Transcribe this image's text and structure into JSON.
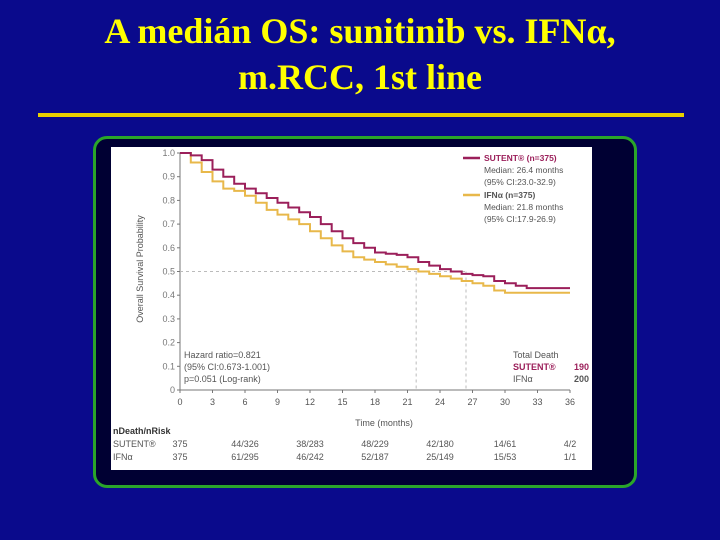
{
  "slide": {
    "title_line1": "A medián OS: sunitinib vs. IFNα,",
    "title_line2": "m.RCC, 1st line"
  },
  "colors": {
    "background": "#0a0a8c",
    "title": "#ffff00",
    "rule": "#e8d000",
    "frame": "#2aa52a",
    "sutent": "#9b1f5a",
    "ifn": "#e8b84a"
  },
  "chart_data": {
    "type": "line",
    "xlabel": "Time (months)",
    "ylabel": "Overall Survival Probability",
    "xlim": [
      0,
      36
    ],
    "ylim": [
      0,
      1.0
    ],
    "x_ticks": [
      "0",
      "3",
      "6",
      "9",
      "12",
      "15",
      "18",
      "21",
      "24",
      "27",
      "30",
      "33",
      "36"
    ],
    "y_ticks": [
      "0",
      "0.1",
      "0.2",
      "0.3",
      "0.4",
      "0.5",
      "0.6",
      "0.7",
      "0.8",
      "0.9",
      "1.0"
    ],
    "series": [
      {
        "name": "SUTENT® (n=375)",
        "x": [
          0,
          1,
          2,
          3,
          4,
          5,
          6,
          7,
          8,
          9,
          10,
          11,
          12,
          13,
          14,
          15,
          16,
          17,
          18,
          19,
          20,
          21,
          22,
          23,
          24,
          25,
          26,
          27,
          28,
          29,
          30,
          31,
          32,
          33,
          34,
          35,
          36
        ],
        "y": [
          1.0,
          0.99,
          0.97,
          0.93,
          0.9,
          0.87,
          0.85,
          0.83,
          0.81,
          0.79,
          0.77,
          0.75,
          0.73,
          0.7,
          0.67,
          0.64,
          0.62,
          0.6,
          0.58,
          0.575,
          0.57,
          0.56,
          0.54,
          0.525,
          0.51,
          0.5,
          0.49,
          0.485,
          0.48,
          0.46,
          0.45,
          0.44,
          0.43,
          0.43,
          0.43,
          0.43,
          0.43
        ]
      },
      {
        "name": "IFNα (n=375)",
        "x": [
          0,
          1,
          2,
          3,
          4,
          5,
          6,
          7,
          8,
          9,
          10,
          11,
          12,
          13,
          14,
          15,
          16,
          17,
          18,
          19,
          20,
          21,
          22,
          23,
          24,
          25,
          26,
          27,
          28,
          29,
          30,
          31,
          32,
          33,
          34,
          35,
          36
        ],
        "y": [
          1.0,
          0.96,
          0.92,
          0.88,
          0.85,
          0.84,
          0.82,
          0.79,
          0.76,
          0.74,
          0.72,
          0.7,
          0.67,
          0.64,
          0.61,
          0.585,
          0.56,
          0.55,
          0.54,
          0.53,
          0.52,
          0.51,
          0.5,
          0.49,
          0.48,
          0.47,
          0.46,
          0.45,
          0.44,
          0.42,
          0.41,
          0.41,
          0.41,
          0.41,
          0.41,
          0.41,
          0.41
        ]
      }
    ],
    "median_x": [
      21.8,
      26.4
    ],
    "median_y": 0.5,
    "legend": [
      {
        "title": "SUTENT® (n=375)",
        "line1": "Median: 26.4 months",
        "line2": "(95% CI:23.0-32.9)"
      },
      {
        "title": "IFNα (n=375)",
        "line1": "Median: 21.8 months",
        "line2": "(95% CI:17.9-26.9)"
      }
    ],
    "hazard": {
      "line1": "Hazard ratio=0.821",
      "line2": "(95% CI:0.673-1.001)",
      "line3": "p=0.051 (Log-rank)"
    },
    "deaths": {
      "header": "Total Death",
      "rows": [
        {
          "label": "SUTENT®",
          "value": "190"
        },
        {
          "label": "IFNα",
          "value": "200"
        }
      ]
    },
    "risk_table": {
      "header": "nDeath/nRisk",
      "rows": [
        {
          "label": "SUTENT®",
          "cells": [
            "375",
            "44/326",
            "38/283",
            "48/229",
            "42/180",
            "14/61",
            "4/2"
          ]
        },
        {
          "label": "IFNα",
          "cells": [
            "375",
            "61/295",
            "46/242",
            "52/187",
            "25/149",
            "15/53",
            "1/1"
          ]
        }
      ]
    }
  }
}
